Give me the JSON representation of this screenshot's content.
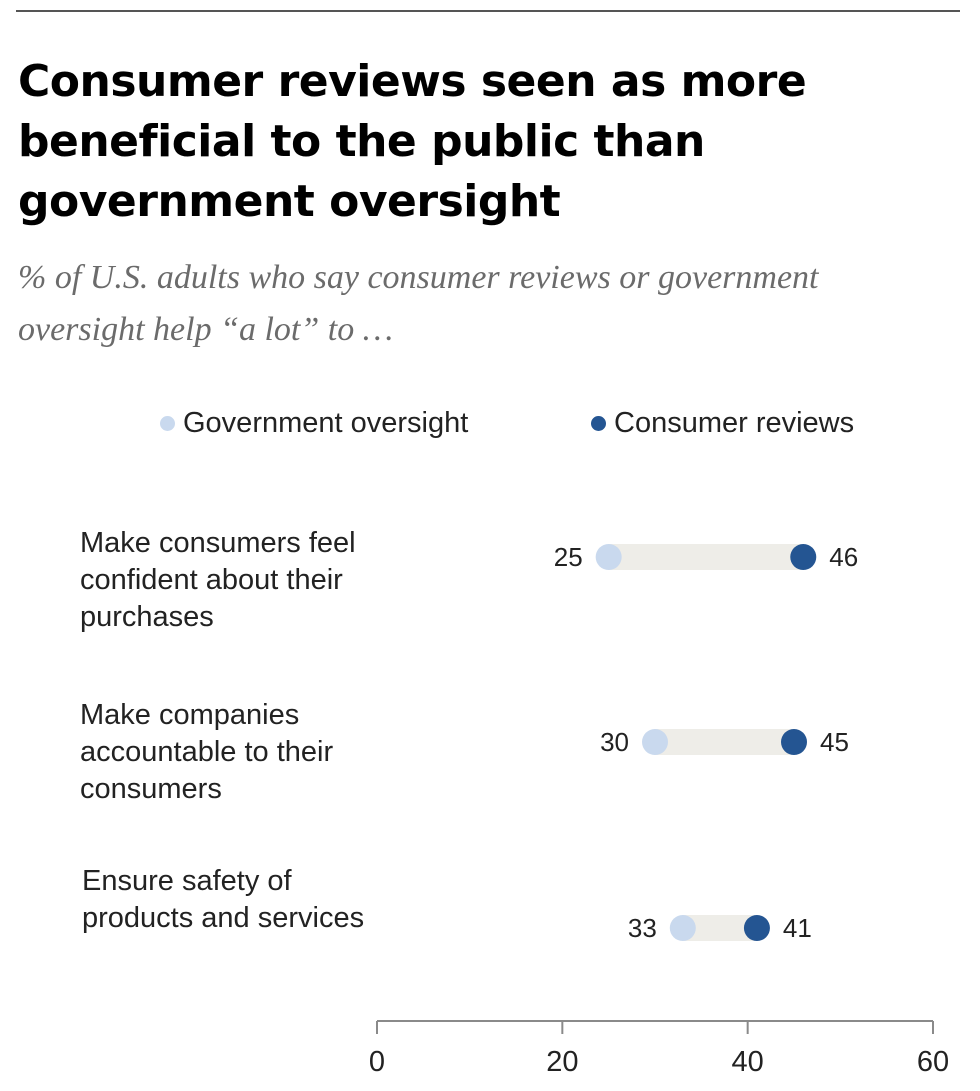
{
  "header": {
    "title": "Consumer reviews seen as more beneficial to the public than government oversight",
    "subtitle": "% of U.S. adults who say consumer reviews or government oversight help “a lot” to …"
  },
  "colors": {
    "government_oversight": "#c9d9ee",
    "consumer_reviews": "#245592",
    "bar_track": "#eeede8",
    "axis": "#8a8a8a"
  },
  "chart_data": {
    "type": "dot-range",
    "title": "Consumer reviews seen as more beneficial to the public than government oversight",
    "subtitle": "% of U.S. adults who say consumer reviews or government oversight help “a lot” to …",
    "legend": [
      "Government oversight",
      "Consumer reviews"
    ],
    "legend_position": "top",
    "categories": [
      "Make consumers feel confident about their purchases",
      "Make companies accountable to their consumers",
      "Ensure safety of products and services"
    ],
    "series": [
      {
        "name": "Government oversight",
        "values": [
          25,
          30,
          33
        ]
      },
      {
        "name": "Consumer reviews",
        "values": [
          46,
          45,
          41
        ]
      }
    ],
    "xlim": [
      0,
      60
    ],
    "xticks": [
      0,
      20,
      40,
      60
    ],
    "xlabel": "",
    "ylabel": "",
    "grid": false
  },
  "rows": [
    {
      "label_lines": [
        "Make consumers feel",
        "confident about their",
        "purchases"
      ]
    },
    {
      "label_lines": [
        "Make companies",
        "accountable to their",
        "consumers"
      ]
    },
    {
      "label_lines": [
        "Ensure safety of",
        "products and services"
      ]
    }
  ]
}
